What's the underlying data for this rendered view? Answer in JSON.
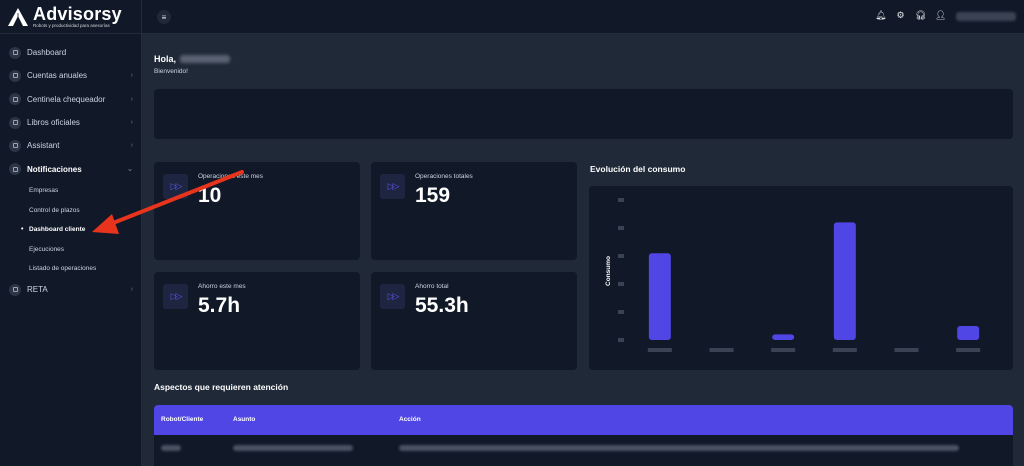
{
  "brand": {
    "name": "Advisorsy",
    "tagline": "Robots y productividad para asesorías"
  },
  "sidebar": {
    "items": [
      {
        "label": "Dashboard",
        "icon": "chart-icon"
      },
      {
        "label": "Cuentas anuales",
        "icon": "box-icon"
      },
      {
        "label": "Centinela chequeador",
        "icon": "box-icon"
      },
      {
        "label": "Libros oficiales",
        "icon": "box-icon"
      },
      {
        "label": "Assistant",
        "icon": "box-icon"
      },
      {
        "label": "Notificaciones",
        "icon": "box-icon"
      },
      {
        "label": "RETA",
        "icon": "box-icon"
      }
    ],
    "subitems": [
      {
        "label": "Empresas"
      },
      {
        "label": "Control de plazos"
      },
      {
        "label": "Dashboard cliente"
      },
      {
        "label": "Ejecuciones"
      },
      {
        "label": "Listado de operaciones"
      }
    ]
  },
  "topbar": {
    "icons": [
      "bell-icon",
      "gear-icon",
      "headset-icon",
      "user-icon"
    ]
  },
  "main": {
    "greeting": "Hola,",
    "welcome": "Bienvenido!",
    "stats": [
      {
        "label": "Operaciones este mes",
        "value": "10"
      },
      {
        "label": "Operaciones totales",
        "value": "159"
      },
      {
        "label": "Ahorro este mes",
        "value": "5.7h"
      },
      {
        "label": "Ahorro total",
        "value": "55.3h"
      }
    ],
    "chart_title": "Evolución del consumo",
    "attention_title": "Aspectos que requieren atención",
    "table_headers": [
      "Robot/Cliente",
      "Asunto",
      "Acción"
    ]
  },
  "colors": {
    "accent": "#4f46e5",
    "bar": "#4f46e5",
    "annotation_arrow": "#e8341c"
  },
  "chart_data": {
    "type": "bar",
    "ylabel": "Consumo",
    "categories": [
      "",
      "",
      "",
      "",
      "",
      ""
    ],
    "values": [
      31,
      0,
      2,
      42,
      0,
      5
    ],
    "ylim": [
      0,
      50
    ]
  }
}
